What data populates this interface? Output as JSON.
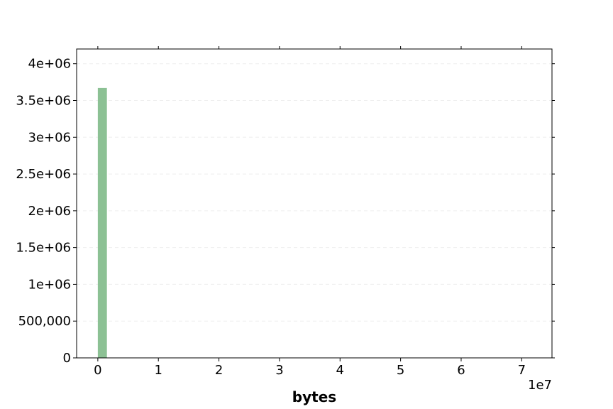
{
  "chart_data": {
    "type": "bar",
    "title": "",
    "xlabel": "bytes",
    "ylabel": "",
    "x_offset_text": "1e7",
    "bars": [
      {
        "x_start": 0,
        "x_end": 1500000,
        "value": 3670000
      }
    ],
    "xlim": [
      -3500000,
      75000000
    ],
    "ylim": [
      0,
      4200000
    ],
    "x_ticks": [
      0,
      10000000,
      20000000,
      30000000,
      40000000,
      50000000,
      60000000,
      70000000
    ],
    "x_tick_labels": [
      "0",
      "1",
      "2",
      "3",
      "4",
      "5",
      "6",
      "7"
    ],
    "y_ticks": [
      0,
      500000,
      1000000,
      1500000,
      2000000,
      2500000,
      3000000,
      3500000,
      4000000
    ],
    "y_tick_labels": [
      "0",
      "500,000",
      "1e+06",
      "1.5e+06",
      "2e+06",
      "2.5e+06",
      "3e+06",
      "3.5e+06",
      "4e+06"
    ],
    "grid": "horizontal-dashed",
    "legend": "none",
    "colors": {
      "bar": "#8cc194",
      "axis": "#000000",
      "grid": "#eeeeee"
    }
  }
}
